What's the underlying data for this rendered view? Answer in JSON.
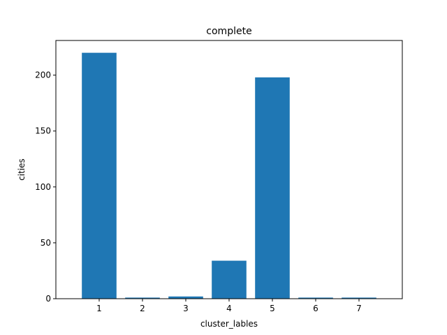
{
  "chart_data": {
    "type": "bar",
    "title": "complete",
    "xlabel": "cluster_lables",
    "ylabel": "cities",
    "categories": [
      "1",
      "2",
      "3",
      "4",
      "5",
      "6",
      "7"
    ],
    "values": [
      220,
      1,
      2,
      34,
      198,
      1,
      1
    ],
    "ylim": [
      0,
      231
    ],
    "yticks": [
      0,
      50,
      100,
      150,
      200
    ],
    "ytick_labels": [
      "0",
      "50",
      "100",
      "150",
      "200"
    ],
    "grid": false,
    "legend": "none",
    "bar_color": "#1f77b4"
  }
}
